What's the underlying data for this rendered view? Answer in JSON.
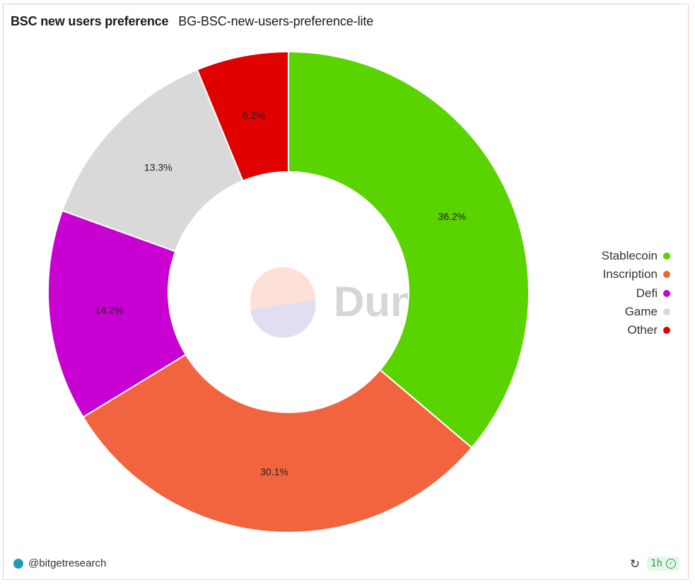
{
  "header": {
    "title": "BSC new users preference",
    "subtitle": "BG-BSC-new-users-preference-lite"
  },
  "chart_data": {
    "type": "pie",
    "donut": true,
    "categories": [
      "Stablecoin",
      "Inscription",
      "Defi",
      "Game",
      "Other"
    ],
    "values": [
      36.2,
      30.1,
      14.2,
      13.3,
      6.2
    ],
    "labels": [
      "36.2%",
      "30.1%",
      "14.2%",
      "13.3%",
      "6.2%"
    ],
    "colors": [
      "#5ad400",
      "#f26440",
      "#c800d2",
      "#d9d9d9",
      "#e00000"
    ],
    "legend_position": "right"
  },
  "watermark": {
    "text": "Dune"
  },
  "footer": {
    "author": "@bitgetresearch",
    "refresh_icon": "refresh-icon",
    "badge": "1h",
    "check_icon": "check-circle-icon"
  }
}
